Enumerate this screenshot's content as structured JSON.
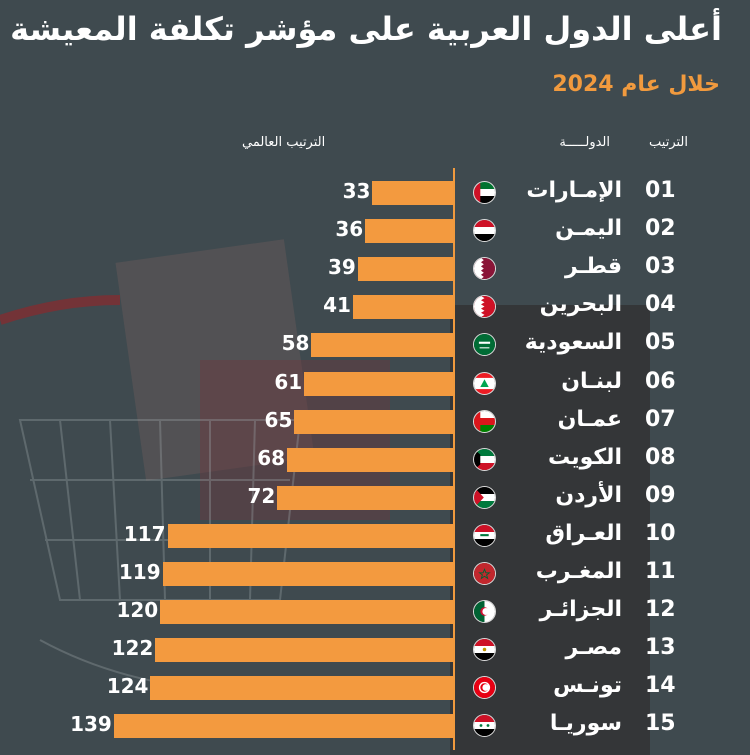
{
  "title": "أعلى الدول العربية على مؤشر تكلفة المعيشة",
  "subtitle": "خلال عام 2024",
  "headers": {
    "rank": "الترتيب",
    "country": "الدولـــــة",
    "global_rank": "الترتيب العالمي"
  },
  "colors": {
    "bar": "#f39a3f",
    "subtitle": "#f19a3e",
    "background": "#3f4a4f"
  },
  "chart_data": {
    "type": "bar",
    "title": "أعلى الدول العربية على مؤشر تكلفة المعيشة",
    "subtitle": "خلال عام 2024",
    "ylabel": "الترتيب العالمي",
    "orientation": "horizontal",
    "rows": [
      {
        "rank": "01",
        "country": "الإمـارات",
        "value": 33,
        "flag": "uae-flag-icon"
      },
      {
        "rank": "02",
        "country": "اليمـن",
        "value": 36,
        "flag": "yemen-flag-icon"
      },
      {
        "rank": "03",
        "country": "قطـر",
        "value": 39,
        "flag": "qatar-flag-icon"
      },
      {
        "rank": "04",
        "country": "البحرين",
        "value": 41,
        "flag": "bahrain-flag-icon"
      },
      {
        "rank": "05",
        "country": "السعودية",
        "value": 58,
        "flag": "saudi-flag-icon"
      },
      {
        "rank": "06",
        "country": "لبنـان",
        "value": 61,
        "flag": "lebanon-flag-icon"
      },
      {
        "rank": "07",
        "country": "عمـان",
        "value": 65,
        "flag": "oman-flag-icon"
      },
      {
        "rank": "08",
        "country": "الكويت",
        "value": 68,
        "flag": "kuwait-flag-icon"
      },
      {
        "rank": "09",
        "country": "الأردن",
        "value": 72,
        "flag": "jordan-flag-icon"
      },
      {
        "rank": "10",
        "country": "العـراق",
        "value": 117,
        "flag": "iraq-flag-icon"
      },
      {
        "rank": "11",
        "country": "المغـرب",
        "value": 119,
        "flag": "morocco-flag-icon"
      },
      {
        "rank": "12",
        "country": "الجزائـر",
        "value": 120,
        "flag": "algeria-flag-icon"
      },
      {
        "rank": "13",
        "country": "مصـر",
        "value": 122,
        "flag": "egypt-flag-icon"
      },
      {
        "rank": "14",
        "country": "تونـس",
        "value": 124,
        "flag": "tunisia-flag-icon"
      },
      {
        "rank": "15",
        "country": "سوريـا",
        "value": 139,
        "flag": "syria-flag-icon"
      }
    ]
  }
}
